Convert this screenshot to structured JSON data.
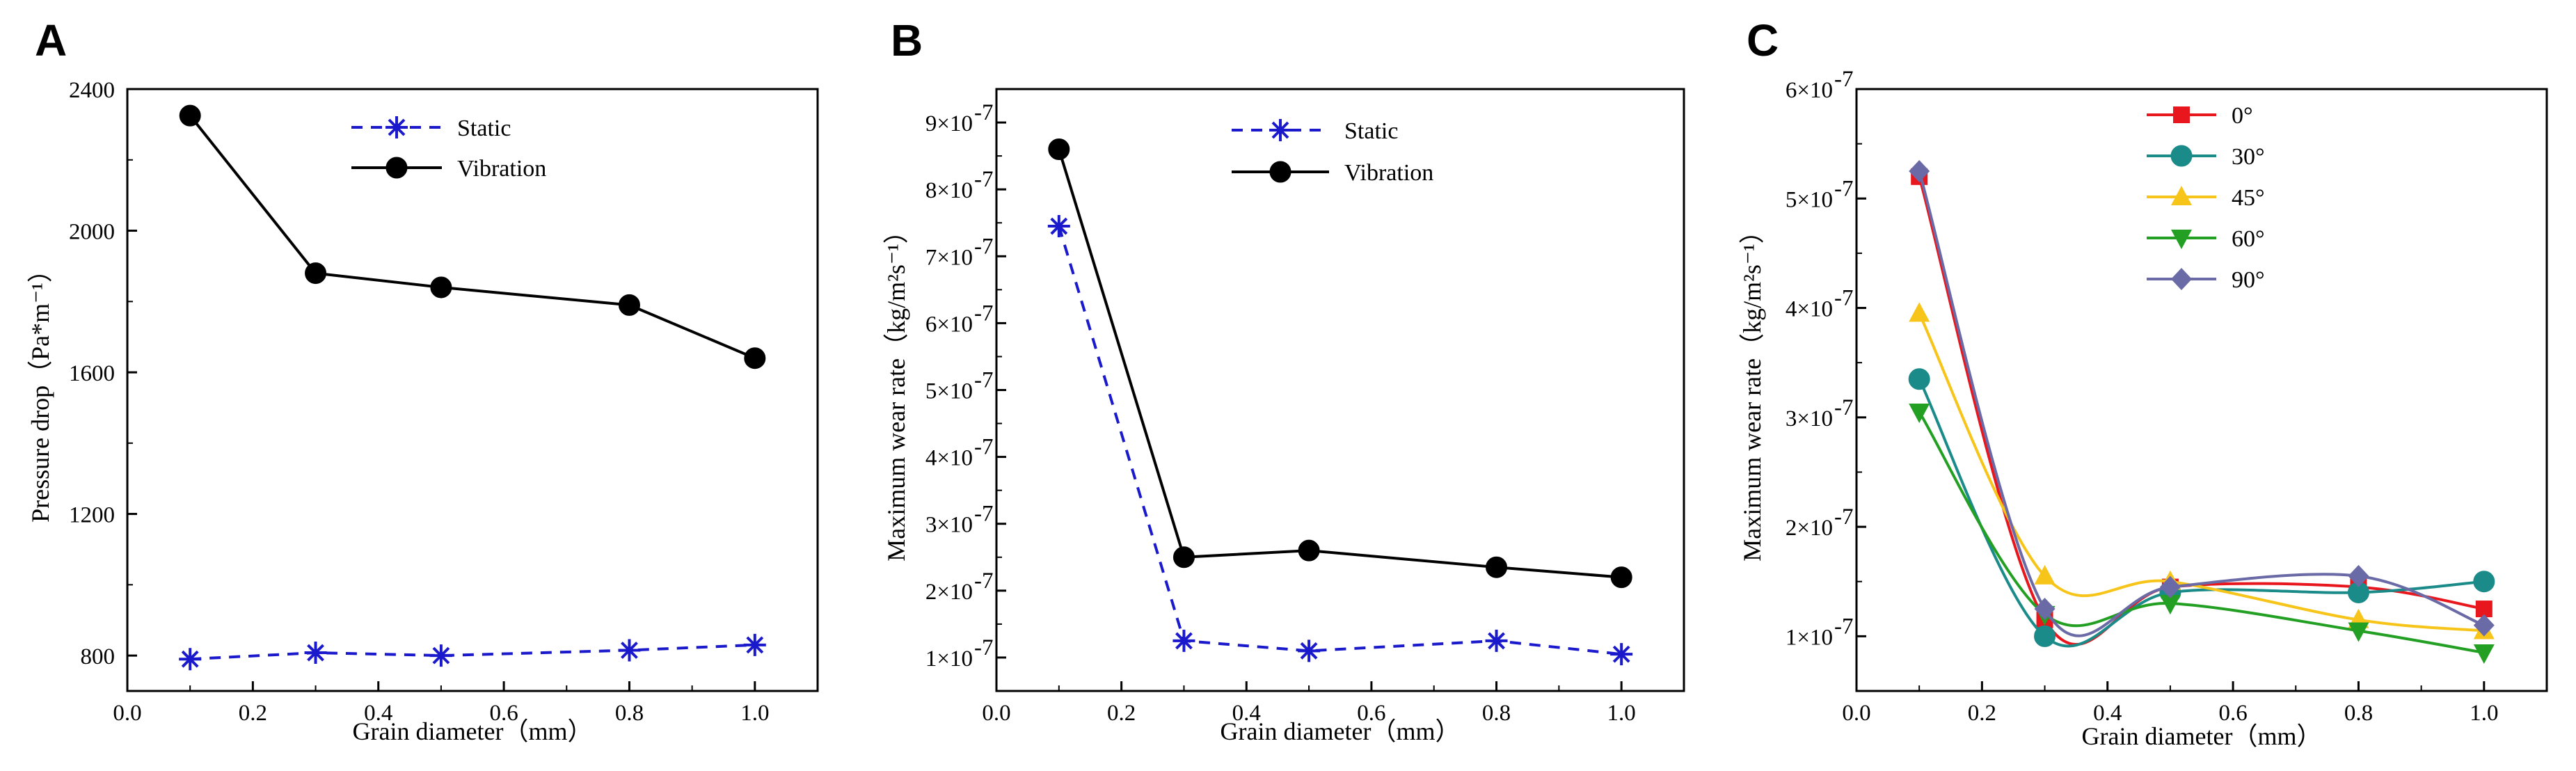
{
  "chart_data": [
    {
      "panel": "A",
      "type": "line",
      "title": "",
      "xlabel": "Grain diameter（mm）",
      "ylabel": "Pressure drop（Pa*m⁻¹）",
      "xlim": [
        0.0,
        1.1
      ],
      "ylim": [
        700,
        2400
      ],
      "xticks": [
        0.0,
        0.2,
        0.4,
        0.6,
        0.8,
        1.0
      ],
      "xtick_labels": [
        "0.0",
        "0.2",
        "0.4",
        "0.6",
        "0.8",
        "1.0"
      ],
      "yticks": [
        800,
        1200,
        1600,
        2000,
        2400
      ],
      "ytick_labels": [
        "800",
        "1200",
        "1600",
        "2000",
        "2400"
      ],
      "legend_position": "top-center",
      "series": [
        {
          "name": "Static",
          "x": [
            0.1,
            0.3,
            0.5,
            0.8,
            1.0
          ],
          "values": [
            790,
            808,
            800,
            815,
            830
          ],
          "color": "#1a1acc",
          "marker": "asterisk",
          "dash": true,
          "smooth": false
        },
        {
          "name": "Vibration",
          "x": [
            0.1,
            0.3,
            0.5,
            0.8,
            1.0
          ],
          "values": [
            2325,
            1880,
            1840,
            1790,
            1640
          ],
          "color": "#000000",
          "marker": "circle",
          "dash": false,
          "smooth": false
        }
      ]
    },
    {
      "panel": "B",
      "type": "line",
      "title": "",
      "xlabel": "Grain diameter（mm）",
      "ylabel": "Maximum wear rate（kg/m²s⁻¹）",
      "xlim": [
        0.0,
        1.1
      ],
      "ylim": [
        0.5,
        9.5
      ],
      "y_exponent": -7,
      "xticks": [
        0.0,
        0.2,
        0.4,
        0.6,
        0.8,
        1.0
      ],
      "xtick_labels": [
        "0.0",
        "0.2",
        "0.4",
        "0.6",
        "0.8",
        "1.0"
      ],
      "yticks": [
        1,
        2,
        3,
        4,
        5,
        6,
        7,
        8,
        9
      ],
      "ytick_labels": [
        "1×10",
        "2×10",
        "3×10",
        "4×10",
        "5×10",
        "6×10",
        "7×10",
        "8×10",
        "9×10"
      ],
      "ytick_exponent_label": "-7",
      "legend_position": "top-center",
      "series": [
        {
          "name": "Static",
          "x": [
            0.1,
            0.3,
            0.5,
            0.8,
            1.0
          ],
          "values": [
            7.45,
            1.25,
            1.1,
            1.25,
            1.05
          ],
          "color": "#1a1acc",
          "marker": "asterisk",
          "dash": true,
          "smooth": false
        },
        {
          "name": "Vibration",
          "x": [
            0.1,
            0.3,
            0.5,
            0.8,
            1.0
          ],
          "values": [
            8.6,
            2.5,
            2.6,
            2.35,
            2.2
          ],
          "color": "#000000",
          "marker": "circle",
          "dash": false,
          "smooth": false
        }
      ]
    },
    {
      "panel": "C",
      "type": "line",
      "title": "",
      "xlabel": "Grain diameter（mm）",
      "ylabel": "Maximum wear rate（kg/m²s⁻¹）",
      "xlim": [
        0.0,
        1.1
      ],
      "ylim": [
        0.5,
        6.0
      ],
      "y_exponent": -7,
      "xticks": [
        0.0,
        0.2,
        0.4,
        0.6,
        0.8,
        1.0
      ],
      "xtick_labels": [
        "0.0",
        "0.2",
        "0.4",
        "0.6",
        "0.8",
        "1.0"
      ],
      "yticks": [
        1,
        2,
        3,
        4,
        5,
        6
      ],
      "ytick_labels": [
        "1×10",
        "2×10",
        "3×10",
        "4×10",
        "5×10",
        "6×10"
      ],
      "ytick_exponent_label": "-7",
      "legend_position": "top-left",
      "series": [
        {
          "name": "0°",
          "x": [
            0.1,
            0.3,
            0.5,
            0.8,
            1.0
          ],
          "values": [
            5.2,
            1.15,
            1.45,
            1.45,
            1.25
          ],
          "color": "#e8171e",
          "marker": "square",
          "dash": false,
          "smooth": true
        },
        {
          "name": "30°",
          "x": [
            0.1,
            0.3,
            0.5,
            0.8,
            1.0
          ],
          "values": [
            3.35,
            1.0,
            1.4,
            1.4,
            1.5
          ],
          "color": "#1b8b8a",
          "marker": "circle",
          "dash": false,
          "smooth": true
        },
        {
          "name": "45°",
          "x": [
            0.1,
            0.3,
            0.5,
            0.8,
            1.0
          ],
          "values": [
            3.95,
            1.55,
            1.5,
            1.15,
            1.05
          ],
          "color": "#f7c51a",
          "marker": "triangle-up",
          "dash": false,
          "smooth": true
        },
        {
          "name": "60°",
          "x": [
            0.1,
            0.3,
            0.5,
            0.8,
            1.0
          ],
          "values": [
            3.05,
            1.2,
            1.3,
            1.05,
            0.85
          ],
          "color": "#23a023",
          "marker": "triangle-down",
          "dash": false,
          "smooth": true
        },
        {
          "name": "90°",
          "x": [
            0.1,
            0.3,
            0.5,
            0.8,
            1.0
          ],
          "values": [
            5.25,
            1.25,
            1.45,
            1.55,
            1.1
          ],
          "color": "#6a6aa6",
          "marker": "diamond",
          "dash": false,
          "smooth": true
        }
      ]
    }
  ]
}
